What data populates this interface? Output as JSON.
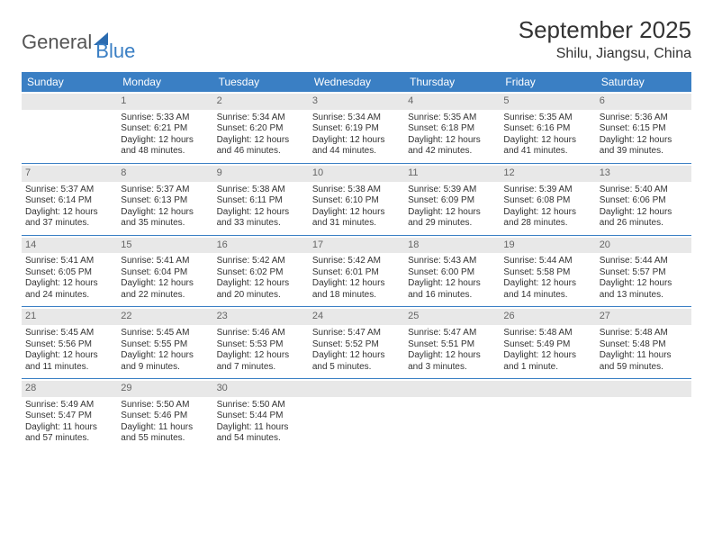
{
  "logo": {
    "word1": "General",
    "word2": "Blue"
  },
  "title": "September 2025",
  "location": "Shilu, Jiangsu, China",
  "colors": {
    "header_bg": "#3a7fc4",
    "header_text": "#ffffff",
    "daynum_bg": "#e8e8e8",
    "daynum_text": "#666666",
    "rule": "#3a7fc4",
    "body_text": "#333333",
    "logo_gray": "#555555",
    "logo_blue": "#3a7fc4"
  },
  "day_headers": [
    "Sunday",
    "Monday",
    "Tuesday",
    "Wednesday",
    "Thursday",
    "Friday",
    "Saturday"
  ],
  "weeks": [
    [
      {
        "n": "",
        "sr": "",
        "ss": "",
        "dl": ""
      },
      {
        "n": "1",
        "sr": "Sunrise: 5:33 AM",
        "ss": "Sunset: 6:21 PM",
        "dl": "Daylight: 12 hours and 48 minutes."
      },
      {
        "n": "2",
        "sr": "Sunrise: 5:34 AM",
        "ss": "Sunset: 6:20 PM",
        "dl": "Daylight: 12 hours and 46 minutes."
      },
      {
        "n": "3",
        "sr": "Sunrise: 5:34 AM",
        "ss": "Sunset: 6:19 PM",
        "dl": "Daylight: 12 hours and 44 minutes."
      },
      {
        "n": "4",
        "sr": "Sunrise: 5:35 AM",
        "ss": "Sunset: 6:18 PM",
        "dl": "Daylight: 12 hours and 42 minutes."
      },
      {
        "n": "5",
        "sr": "Sunrise: 5:35 AM",
        "ss": "Sunset: 6:16 PM",
        "dl": "Daylight: 12 hours and 41 minutes."
      },
      {
        "n": "6",
        "sr": "Sunrise: 5:36 AM",
        "ss": "Sunset: 6:15 PM",
        "dl": "Daylight: 12 hours and 39 minutes."
      }
    ],
    [
      {
        "n": "7",
        "sr": "Sunrise: 5:37 AM",
        "ss": "Sunset: 6:14 PM",
        "dl": "Daylight: 12 hours and 37 minutes."
      },
      {
        "n": "8",
        "sr": "Sunrise: 5:37 AM",
        "ss": "Sunset: 6:13 PM",
        "dl": "Daylight: 12 hours and 35 minutes."
      },
      {
        "n": "9",
        "sr": "Sunrise: 5:38 AM",
        "ss": "Sunset: 6:11 PM",
        "dl": "Daylight: 12 hours and 33 minutes."
      },
      {
        "n": "10",
        "sr": "Sunrise: 5:38 AM",
        "ss": "Sunset: 6:10 PM",
        "dl": "Daylight: 12 hours and 31 minutes."
      },
      {
        "n": "11",
        "sr": "Sunrise: 5:39 AM",
        "ss": "Sunset: 6:09 PM",
        "dl": "Daylight: 12 hours and 29 minutes."
      },
      {
        "n": "12",
        "sr": "Sunrise: 5:39 AM",
        "ss": "Sunset: 6:08 PM",
        "dl": "Daylight: 12 hours and 28 minutes."
      },
      {
        "n": "13",
        "sr": "Sunrise: 5:40 AM",
        "ss": "Sunset: 6:06 PM",
        "dl": "Daylight: 12 hours and 26 minutes."
      }
    ],
    [
      {
        "n": "14",
        "sr": "Sunrise: 5:41 AM",
        "ss": "Sunset: 6:05 PM",
        "dl": "Daylight: 12 hours and 24 minutes."
      },
      {
        "n": "15",
        "sr": "Sunrise: 5:41 AM",
        "ss": "Sunset: 6:04 PM",
        "dl": "Daylight: 12 hours and 22 minutes."
      },
      {
        "n": "16",
        "sr": "Sunrise: 5:42 AM",
        "ss": "Sunset: 6:02 PM",
        "dl": "Daylight: 12 hours and 20 minutes."
      },
      {
        "n": "17",
        "sr": "Sunrise: 5:42 AM",
        "ss": "Sunset: 6:01 PM",
        "dl": "Daylight: 12 hours and 18 minutes."
      },
      {
        "n": "18",
        "sr": "Sunrise: 5:43 AM",
        "ss": "Sunset: 6:00 PM",
        "dl": "Daylight: 12 hours and 16 minutes."
      },
      {
        "n": "19",
        "sr": "Sunrise: 5:44 AM",
        "ss": "Sunset: 5:58 PM",
        "dl": "Daylight: 12 hours and 14 minutes."
      },
      {
        "n": "20",
        "sr": "Sunrise: 5:44 AM",
        "ss": "Sunset: 5:57 PM",
        "dl": "Daylight: 12 hours and 13 minutes."
      }
    ],
    [
      {
        "n": "21",
        "sr": "Sunrise: 5:45 AM",
        "ss": "Sunset: 5:56 PM",
        "dl": "Daylight: 12 hours and 11 minutes."
      },
      {
        "n": "22",
        "sr": "Sunrise: 5:45 AM",
        "ss": "Sunset: 5:55 PM",
        "dl": "Daylight: 12 hours and 9 minutes."
      },
      {
        "n": "23",
        "sr": "Sunrise: 5:46 AM",
        "ss": "Sunset: 5:53 PM",
        "dl": "Daylight: 12 hours and 7 minutes."
      },
      {
        "n": "24",
        "sr": "Sunrise: 5:47 AM",
        "ss": "Sunset: 5:52 PM",
        "dl": "Daylight: 12 hours and 5 minutes."
      },
      {
        "n": "25",
        "sr": "Sunrise: 5:47 AM",
        "ss": "Sunset: 5:51 PM",
        "dl": "Daylight: 12 hours and 3 minutes."
      },
      {
        "n": "26",
        "sr": "Sunrise: 5:48 AM",
        "ss": "Sunset: 5:49 PM",
        "dl": "Daylight: 12 hours and 1 minute."
      },
      {
        "n": "27",
        "sr": "Sunrise: 5:48 AM",
        "ss": "Sunset: 5:48 PM",
        "dl": "Daylight: 11 hours and 59 minutes."
      }
    ],
    [
      {
        "n": "28",
        "sr": "Sunrise: 5:49 AM",
        "ss": "Sunset: 5:47 PM",
        "dl": "Daylight: 11 hours and 57 minutes."
      },
      {
        "n": "29",
        "sr": "Sunrise: 5:50 AM",
        "ss": "Sunset: 5:46 PM",
        "dl": "Daylight: 11 hours and 55 minutes."
      },
      {
        "n": "30",
        "sr": "Sunrise: 5:50 AM",
        "ss": "Sunset: 5:44 PM",
        "dl": "Daylight: 11 hours and 54 minutes."
      },
      {
        "n": "",
        "sr": "",
        "ss": "",
        "dl": ""
      },
      {
        "n": "",
        "sr": "",
        "ss": "",
        "dl": ""
      },
      {
        "n": "",
        "sr": "",
        "ss": "",
        "dl": ""
      },
      {
        "n": "",
        "sr": "",
        "ss": "",
        "dl": ""
      }
    ]
  ]
}
